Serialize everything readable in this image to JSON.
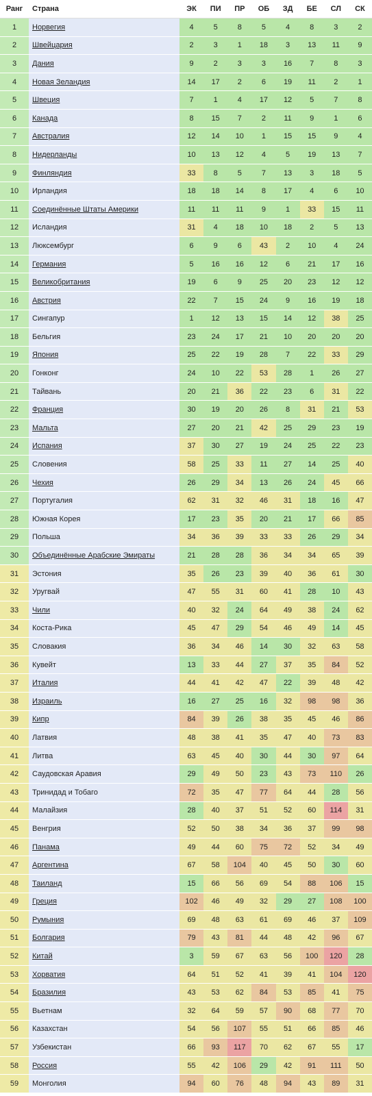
{
  "header": {
    "rank": "Ранг",
    "country": "Страна",
    "columns": [
      "ЭК",
      "ПИ",
      "ПР",
      "ОБ",
      "ЗД",
      "БЕ",
      "СЛ",
      "СК"
    ]
  },
  "rows": [
    {
      "rank": 1,
      "country": "Норвегия",
      "link": true,
      "values": [
        4,
        5,
        8,
        5,
        4,
        8,
        3,
        2
      ]
    },
    {
      "rank": 2,
      "country": "Швейцария",
      "link": true,
      "values": [
        2,
        3,
        1,
        18,
        3,
        13,
        11,
        9
      ]
    },
    {
      "rank": 3,
      "country": "Дания",
      "link": true,
      "values": [
        9,
        2,
        3,
        3,
        16,
        7,
        8,
        3
      ]
    },
    {
      "rank": 4,
      "country": "Новая Зеландия",
      "link": true,
      "values": [
        14,
        17,
        2,
        6,
        19,
        11,
        2,
        1
      ]
    },
    {
      "rank": 5,
      "country": "Швеция",
      "link": true,
      "values": [
        7,
        1,
        4,
        17,
        12,
        5,
        7,
        8
      ]
    },
    {
      "rank": 6,
      "country": "Канада",
      "link": true,
      "values": [
        8,
        15,
        7,
        2,
        11,
        9,
        1,
        6
      ]
    },
    {
      "rank": 7,
      "country": "Австралия",
      "link": true,
      "values": [
        12,
        14,
        10,
        1,
        15,
        15,
        9,
        4
      ]
    },
    {
      "rank": 8,
      "country": "Нидерланды",
      "link": true,
      "values": [
        10,
        13,
        12,
        4,
        5,
        19,
        13,
        7
      ]
    },
    {
      "rank": 9,
      "country": "Финляндия",
      "link": true,
      "values": [
        33,
        8,
        5,
        7,
        13,
        3,
        18,
        5
      ]
    },
    {
      "rank": 10,
      "country": "Ирландия",
      "link": false,
      "values": [
        18,
        18,
        14,
        8,
        17,
        4,
        6,
        10
      ]
    },
    {
      "rank": 11,
      "country": "Соединённые Штаты Америки",
      "link": true,
      "values": [
        11,
        11,
        11,
        9,
        1,
        33,
        15,
        11
      ]
    },
    {
      "rank": 12,
      "country": "Исландия",
      "link": false,
      "values": [
        31,
        4,
        18,
        10,
        18,
        2,
        5,
        13
      ]
    },
    {
      "rank": 13,
      "country": "Люксембург",
      "link": false,
      "values": [
        6,
        9,
        6,
        43,
        2,
        10,
        4,
        24
      ]
    },
    {
      "rank": 14,
      "country": "Германия",
      "link": true,
      "values": [
        5,
        16,
        16,
        12,
        6,
        21,
        17,
        16
      ]
    },
    {
      "rank": 15,
      "country": "Великобритания",
      "link": true,
      "values": [
        19,
        6,
        9,
        25,
        20,
        23,
        12,
        12
      ]
    },
    {
      "rank": 16,
      "country": "Австрия",
      "link": true,
      "values": [
        22,
        7,
        15,
        24,
        9,
        16,
        19,
        18
      ]
    },
    {
      "rank": 17,
      "country": "Сингапур",
      "link": false,
      "values": [
        1,
        12,
        13,
        15,
        14,
        12,
        38,
        25
      ]
    },
    {
      "rank": 18,
      "country": "Бельгия",
      "link": false,
      "values": [
        23,
        24,
        17,
        21,
        10,
        20,
        20,
        20
      ]
    },
    {
      "rank": 19,
      "country": "Япония",
      "link": true,
      "values": [
        25,
        22,
        19,
        28,
        7,
        22,
        33,
        29
      ]
    },
    {
      "rank": 20,
      "country": "Гонконг",
      "link": false,
      "values": [
        24,
        10,
        22,
        53,
        28,
        1,
        26,
        27
      ]
    },
    {
      "rank": 21,
      "country": "Тайвань",
      "link": false,
      "values": [
        20,
        21,
        36,
        22,
        23,
        6,
        31,
        22
      ]
    },
    {
      "rank": 22,
      "country": "Франция",
      "link": true,
      "values": [
        30,
        19,
        20,
        26,
        8,
        31,
        21,
        53
      ]
    },
    {
      "rank": 23,
      "country": "Мальта",
      "link": true,
      "values": [
        27,
        20,
        21,
        42,
        25,
        29,
        23,
        19
      ]
    },
    {
      "rank": 24,
      "country": "Испания",
      "link": true,
      "values": [
        37,
        30,
        27,
        19,
        24,
        25,
        22,
        23
      ]
    },
    {
      "rank": 25,
      "country": "Словения",
      "link": false,
      "values": [
        58,
        25,
        33,
        11,
        27,
        14,
        25,
        40
      ]
    },
    {
      "rank": 26,
      "country": "Чехия",
      "link": true,
      "values": [
        26,
        29,
        34,
        13,
        26,
        24,
        45,
        66
      ]
    },
    {
      "rank": 27,
      "country": "Португалия",
      "link": false,
      "values": [
        62,
        31,
        32,
        46,
        31,
        18,
        16,
        47
      ]
    },
    {
      "rank": 28,
      "country": "Южная Корея",
      "link": false,
      "values": [
        17,
        23,
        35,
        20,
        21,
        17,
        66,
        85
      ]
    },
    {
      "rank": 29,
      "country": "Польша",
      "link": false,
      "values": [
        34,
        36,
        39,
        33,
        33,
        26,
        29,
        34
      ]
    },
    {
      "rank": 30,
      "country": "Объединённые Арабские Эмираты",
      "link": true,
      "values": [
        21,
        28,
        28,
        36,
        34,
        34,
        65,
        39
      ]
    },
    {
      "rank": 31,
      "country": "Эстония",
      "link": false,
      "values": [
        35,
        26,
        23,
        39,
        40,
        36,
        61,
        30
      ]
    },
    {
      "rank": 32,
      "country": "Уругвай",
      "link": false,
      "values": [
        47,
        55,
        31,
        60,
        41,
        28,
        10,
        43
      ]
    },
    {
      "rank": 33,
      "country": "Чили",
      "link": true,
      "values": [
        40,
        32,
        24,
        64,
        49,
        38,
        24,
        62
      ]
    },
    {
      "rank": 34,
      "country": "Коста-Рика",
      "link": false,
      "values": [
        45,
        47,
        29,
        54,
        46,
        49,
        14,
        45
      ]
    },
    {
      "rank": 35,
      "country": "Словакия",
      "link": false,
      "values": [
        36,
        34,
        46,
        14,
        30,
        32,
        63,
        58
      ]
    },
    {
      "rank": 36,
      "country": "Кувейт",
      "link": false,
      "values": [
        13,
        33,
        44,
        27,
        37,
        35,
        84,
        52
      ]
    },
    {
      "rank": 37,
      "country": "Италия",
      "link": true,
      "values": [
        44,
        41,
        42,
        47,
        22,
        39,
        48,
        42
      ]
    },
    {
      "rank": 38,
      "country": "Израиль",
      "link": true,
      "values": [
        16,
        27,
        25,
        16,
        32,
        98,
        98,
        36
      ]
    },
    {
      "rank": 39,
      "country": "Кипр",
      "link": true,
      "values": [
        84,
        39,
        26,
        38,
        35,
        45,
        46,
        86
      ]
    },
    {
      "rank": 40,
      "country": "Латвия",
      "link": false,
      "values": [
        48,
        38,
        41,
        35,
        47,
        40,
        73,
        83
      ]
    },
    {
      "rank": 41,
      "country": "Литва",
      "link": false,
      "values": [
        63,
        45,
        40,
        30,
        44,
        30,
        97,
        64
      ]
    },
    {
      "rank": 42,
      "country": "Саудовская Аравия",
      "link": false,
      "values": [
        29,
        49,
        50,
        23,
        43,
        73,
        110,
        26
      ]
    },
    {
      "rank": 43,
      "country": "Тринидад и Тобаго",
      "link": false,
      "values": [
        72,
        35,
        47,
        77,
        64,
        44,
        28,
        56
      ]
    },
    {
      "rank": 44,
      "country": "Малайзия",
      "link": false,
      "values": [
        28,
        40,
        37,
        51,
        52,
        60,
        114,
        31
      ]
    },
    {
      "rank": 45,
      "country": "Венгрия",
      "link": false,
      "values": [
        52,
        50,
        38,
        34,
        36,
        37,
        99,
        98
      ]
    },
    {
      "rank": 46,
      "country": "Панама",
      "link": true,
      "values": [
        49,
        44,
        60,
        75,
        72,
        52,
        34,
        49
      ]
    },
    {
      "rank": 47,
      "country": "Аргентина",
      "link": true,
      "values": [
        67,
        58,
        104,
        40,
        45,
        50,
        30,
        60
      ]
    },
    {
      "rank": 48,
      "country": "Таиланд",
      "link": true,
      "values": [
        15,
        66,
        56,
        69,
        54,
        88,
        106,
        15
      ]
    },
    {
      "rank": 49,
      "country": "Греция",
      "link": true,
      "values": [
        102,
        46,
        49,
        32,
        29,
        27,
        108,
        100
      ]
    },
    {
      "rank": 50,
      "country": "Румыния",
      "link": true,
      "values": [
        69,
        48,
        63,
        61,
        69,
        46,
        37,
        109
      ]
    },
    {
      "rank": 51,
      "country": "Болгария",
      "link": true,
      "values": [
        79,
        43,
        81,
        44,
        48,
        42,
        96,
        67
      ]
    },
    {
      "rank": 52,
      "country": "Китай",
      "link": true,
      "values": [
        3,
        59,
        67,
        63,
        56,
        100,
        120,
        28
      ]
    },
    {
      "rank": 53,
      "country": "Хорватия",
      "link": true,
      "values": [
        64,
        51,
        52,
        41,
        39,
        41,
        104,
        120
      ]
    },
    {
      "rank": 54,
      "country": "Бразилия",
      "link": true,
      "values": [
        43,
        53,
        62,
        84,
        53,
        85,
        41,
        75
      ]
    },
    {
      "rank": 55,
      "country": "Вьетнам",
      "link": false,
      "values": [
        32,
        64,
        59,
        57,
        90,
        68,
        77,
        70
      ]
    },
    {
      "rank": 56,
      "country": "Казахстан",
      "link": false,
      "values": [
        54,
        56,
        107,
        55,
        51,
        66,
        85,
        46
      ]
    },
    {
      "rank": 57,
      "country": "Узбекистан",
      "link": false,
      "values": [
        66,
        93,
        117,
        70,
        62,
        67,
        55,
        17
      ]
    },
    {
      "rank": 58,
      "country": "Россия",
      "link": true,
      "values": [
        55,
        42,
        106,
        29,
        42,
        91,
        111,
        50
      ]
    },
    {
      "rank": 59,
      "country": "Монголия",
      "link": false,
      "values": [
        94,
        60,
        76,
        48,
        94,
        43,
        89,
        31
      ]
    }
  ]
}
